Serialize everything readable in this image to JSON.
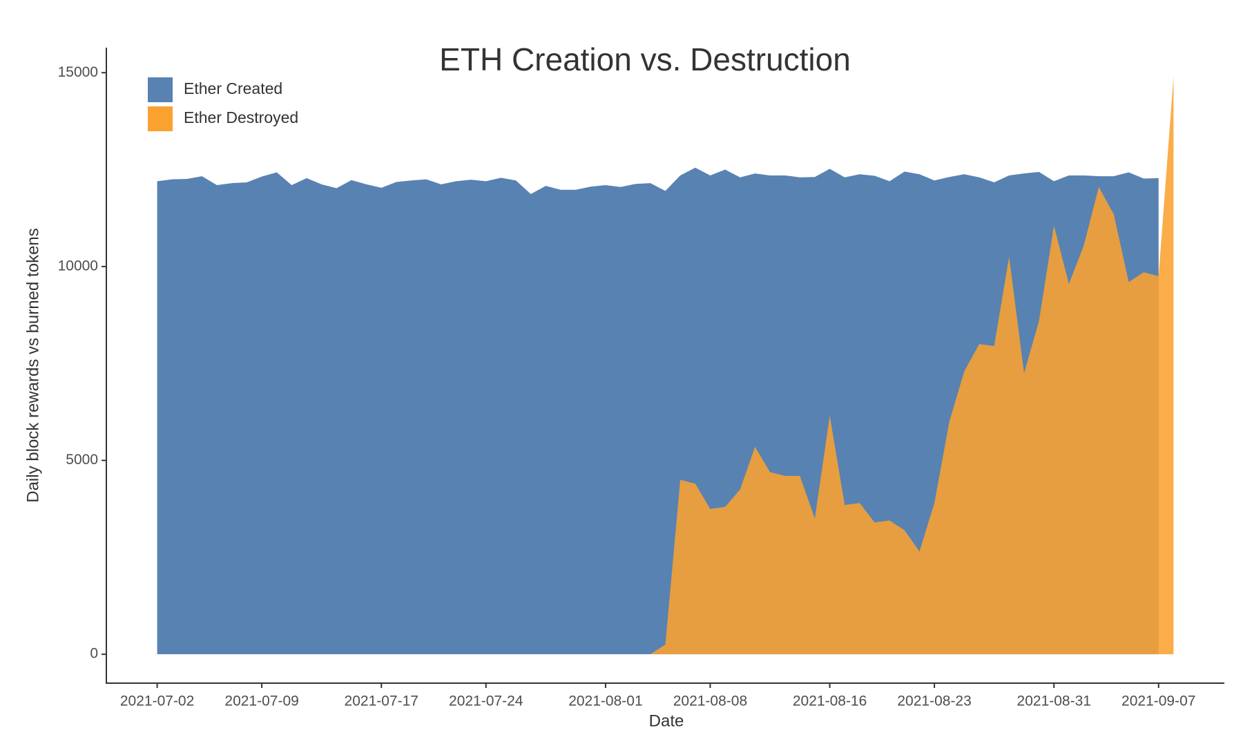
{
  "chart_data": {
    "type": "area",
    "title": "ETH Creation vs. Destruction",
    "x_label": "Date",
    "y_label": "Daily block rewards vs burned tokens",
    "x": [
      "2021-07-02",
      "2021-07-03",
      "2021-07-04",
      "2021-07-05",
      "2021-07-06",
      "2021-07-07",
      "2021-07-08",
      "2021-07-09",
      "2021-07-10",
      "2021-07-11",
      "2021-07-12",
      "2021-07-13",
      "2021-07-14",
      "2021-07-15",
      "2021-07-16",
      "2021-07-17",
      "2021-07-18",
      "2021-07-19",
      "2021-07-20",
      "2021-07-21",
      "2021-07-22",
      "2021-07-23",
      "2021-07-24",
      "2021-07-25",
      "2021-07-26",
      "2021-07-27",
      "2021-07-28",
      "2021-07-29",
      "2021-07-30",
      "2021-07-31",
      "2021-08-01",
      "2021-08-02",
      "2021-08-03",
      "2021-08-04",
      "2021-08-05",
      "2021-08-06",
      "2021-08-07",
      "2021-08-08",
      "2021-08-09",
      "2021-08-10",
      "2021-08-11",
      "2021-08-12",
      "2021-08-13",
      "2021-08-14",
      "2021-08-15",
      "2021-08-16",
      "2021-08-17",
      "2021-08-18",
      "2021-08-19",
      "2021-08-20",
      "2021-08-21",
      "2021-08-22",
      "2021-08-23",
      "2021-08-24",
      "2021-08-25",
      "2021-08-26",
      "2021-08-27",
      "2021-08-28",
      "2021-08-29",
      "2021-08-30",
      "2021-08-31",
      "2021-09-01",
      "2021-09-02",
      "2021-09-03",
      "2021-09-04",
      "2021-09-05",
      "2021-09-06",
      "2021-09-07",
      "2021-09-08"
    ],
    "series": [
      {
        "name": "Ether Created",
        "color": "#5882b2",
        "opacity": 1,
        "values": [
          12200,
          12250,
          12260,
          12330,
          12100,
          12150,
          12170,
          12320,
          12430,
          12100,
          12280,
          12120,
          12020,
          12230,
          12120,
          12030,
          12180,
          12220,
          12250,
          12120,
          12200,
          12240,
          12200,
          12290,
          12220,
          11870,
          12080,
          11980,
          11980,
          12060,
          12100,
          12050,
          12130,
          12150,
          11950,
          12350,
          12550,
          12350,
          12500,
          12300,
          12400,
          12350,
          12350,
          12300,
          12310,
          12520,
          12300,
          12380,
          12340,
          12200,
          12450,
          12380,
          12220,
          12310,
          12380,
          12300,
          12170,
          12350,
          12400,
          12440,
          12200,
          12350,
          12350,
          12330,
          12330,
          12430,
          12270,
          12280,
          null
        ]
      },
      {
        "name": "Ether Destroyed",
        "color": "#f9a230",
        "opacity": 0.88,
        "values": [
          null,
          null,
          null,
          null,
          null,
          null,
          null,
          null,
          null,
          null,
          null,
          null,
          null,
          null,
          null,
          null,
          null,
          null,
          null,
          null,
          null,
          null,
          null,
          null,
          null,
          null,
          null,
          null,
          null,
          null,
          null,
          null,
          null,
          0,
          250,
          4500,
          4400,
          3750,
          3800,
          4250,
          5350,
          4700,
          4600,
          4600,
          3500,
          6150,
          3850,
          3900,
          3400,
          3450,
          3200,
          2650,
          3900,
          6000,
          7300,
          8000,
          7950,
          10250,
          7250,
          8600,
          11050,
          9550,
          10550,
          12050,
          11350,
          9600,
          9850,
          9750,
          14900
        ]
      }
    ],
    "xticks": [
      "2021-07-02",
      "2021-07-09",
      "2021-07-17",
      "2021-07-24",
      "2021-08-01",
      "2021-08-08",
      "2021-08-16",
      "2021-08-23",
      "2021-08-31",
      "2021-09-07"
    ],
    "ylim": [
      -745,
      15645
    ],
    "yticks": [
      0,
      5000,
      10000,
      15000
    ],
    "grid": false,
    "legend": "top-left"
  }
}
